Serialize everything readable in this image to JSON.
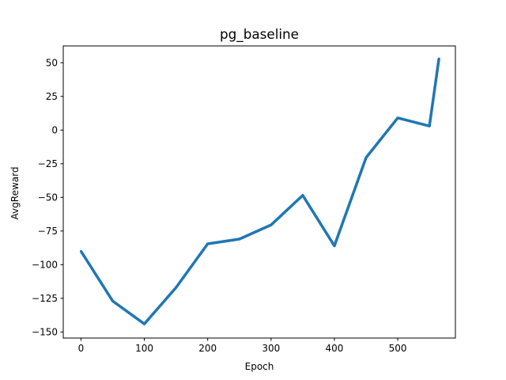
{
  "chart_data": {
    "type": "line",
    "title": "pg_baseline",
    "xlabel": "Epoch",
    "ylabel": "AvgReward",
    "xlim": [
      -28,
      591
    ],
    "ylim": [
      -154.5,
      62.5
    ],
    "xticks": [
      0,
      100,
      200,
      300,
      400,
      500
    ],
    "yticks": [
      50,
      25,
      0,
      -25,
      -50,
      -75,
      -100,
      -125,
      -150
    ],
    "ytick_labels": [
      "50",
      "25",
      "0",
      "−25",
      "−50",
      "−75",
      "−100",
      "−125",
      "−150"
    ],
    "grid": false,
    "series": [
      {
        "color": "#1f77b4",
        "x": [
          0,
          50,
          100,
          150,
          200,
          250,
          300,
          350,
          400,
          450,
          500,
          550,
          565
        ],
        "y": [
          -90,
          -127,
          -144,
          -117,
          -84.5,
          -81,
          -70.5,
          -48.5,
          -86,
          -20.5,
          9,
          3,
          53
        ]
      }
    ]
  }
}
